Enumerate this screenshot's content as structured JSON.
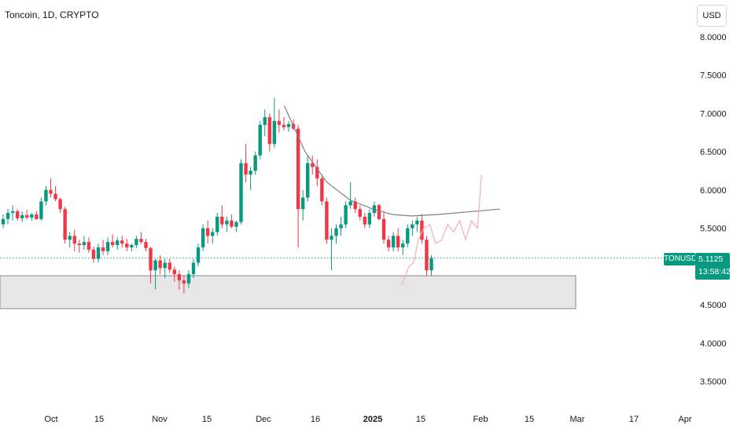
{
  "header": {
    "title": "Toncoin, 1D, CRYPTO",
    "currency": "USD"
  },
  "price": {
    "symbol": "TONUSD",
    "last": "5.1125",
    "countdown": "13:58:42"
  },
  "colors": {
    "up": "#089981",
    "down": "#f23645",
    "grid": "#ffffff",
    "text": "#131722",
    "zone": "#e6e6e6",
    "zone_border": "#8a8a8a",
    "curve": "#808080",
    "projection": "#f4b4bb",
    "price_line": "#089981"
  },
  "chart_data": {
    "type": "candlestick",
    "x_ticks": [
      "Oct",
      "15",
      "Nov",
      "15",
      "Dec",
      "16",
      "2025",
      "15",
      "Feb",
      "15",
      "Mar",
      "17",
      "Apr"
    ],
    "y_ticks": [
      "8.0000",
      "7.5000",
      "7.0000",
      "6.5000",
      "6.0000",
      "5.5000",
      "4.5000",
      "4.0000",
      "3.5000"
    ],
    "ylim": [
      3.25,
      8.1
    ],
    "candles_ohlc": [
      [
        5.55,
        5.68,
        5.5,
        5.62
      ],
      [
        5.62,
        5.75,
        5.55,
        5.7
      ],
      [
        5.7,
        5.8,
        5.6,
        5.72
      ],
      [
        5.72,
        5.75,
        5.6,
        5.63
      ],
      [
        5.63,
        5.72,
        5.58,
        5.67
      ],
      [
        5.67,
        5.74,
        5.62,
        5.64
      ],
      [
        5.64,
        5.7,
        5.6,
        5.68
      ],
      [
        5.68,
        5.72,
        5.61,
        5.62
      ],
      [
        5.62,
        5.9,
        5.6,
        5.85
      ],
      [
        5.85,
        6.05,
        5.8,
        6.0
      ],
      [
        6.0,
        6.15,
        5.9,
        5.95
      ],
      [
        5.95,
        6.05,
        5.85,
        5.88
      ],
      [
        5.88,
        5.9,
        5.7,
        5.75
      ],
      [
        5.75,
        5.78,
        5.3,
        5.35
      ],
      [
        5.35,
        5.45,
        5.25,
        5.4
      ],
      [
        5.4,
        5.48,
        5.2,
        5.3
      ],
      [
        5.3,
        5.35,
        5.18,
        5.28
      ],
      [
        5.28,
        5.4,
        5.22,
        5.32
      ],
      [
        5.32,
        5.38,
        5.18,
        5.22
      ],
      [
        5.22,
        5.26,
        5.05,
        5.1
      ],
      [
        5.1,
        5.3,
        5.05,
        5.25
      ],
      [
        5.25,
        5.35,
        5.15,
        5.2
      ],
      [
        5.2,
        5.38,
        5.15,
        5.32
      ],
      [
        5.32,
        5.42,
        5.25,
        5.28
      ],
      [
        5.28,
        5.38,
        5.22,
        5.34
      ],
      [
        5.34,
        5.4,
        5.25,
        5.3
      ],
      [
        5.3,
        5.36,
        5.2,
        5.25
      ],
      [
        5.25,
        5.3,
        5.2,
        5.28
      ],
      [
        5.28,
        5.4,
        5.24,
        5.36
      ],
      [
        5.36,
        5.45,
        5.3,
        5.32
      ],
      [
        5.32,
        5.36,
        5.2,
        5.24
      ],
      [
        5.24,
        5.26,
        4.78,
        4.95
      ],
      [
        4.95,
        5.1,
        4.7,
        5.08
      ],
      [
        5.08,
        5.15,
        4.9,
        4.98
      ],
      [
        4.98,
        5.1,
        4.85,
        5.05
      ],
      [
        5.05,
        5.1,
        4.92,
        4.96
      ],
      [
        4.96,
        5.0,
        4.8,
        4.9
      ],
      [
        4.9,
        4.95,
        4.7,
        4.82
      ],
      [
        4.82,
        4.88,
        4.65,
        4.78
      ],
      [
        4.78,
        4.95,
        4.72,
        4.9
      ],
      [
        4.9,
        5.1,
        4.85,
        5.05
      ],
      [
        5.05,
        5.3,
        5.0,
        5.25
      ],
      [
        5.25,
        5.55,
        5.2,
        5.5
      ],
      [
        5.5,
        5.6,
        5.3,
        5.4
      ],
      [
        5.4,
        5.5,
        5.3,
        5.45
      ],
      [
        5.45,
        5.7,
        5.4,
        5.65
      ],
      [
        5.65,
        5.8,
        5.5,
        5.55
      ],
      [
        5.55,
        5.65,
        5.45,
        5.6
      ],
      [
        5.6,
        5.68,
        5.5,
        5.52
      ],
      [
        5.52,
        5.6,
        5.45,
        5.58
      ],
      [
        5.58,
        6.4,
        5.55,
        6.35
      ],
      [
        6.35,
        6.6,
        6.1,
        6.2
      ],
      [
        6.2,
        6.3,
        6.0,
        6.25
      ],
      [
        6.25,
        6.5,
        6.2,
        6.45
      ],
      [
        6.45,
        6.9,
        6.4,
        6.85
      ],
      [
        6.85,
        7.05,
        6.7,
        6.95
      ],
      [
        6.95,
        7.0,
        6.5,
        6.6
      ],
      [
        6.6,
        7.2,
        6.55,
        6.9
      ],
      [
        6.9,
        7.05,
        6.75,
        6.85
      ],
      [
        6.85,
        6.95,
        6.78,
        6.82
      ],
      [
        6.82,
        6.9,
        6.76,
        6.86
      ],
      [
        6.86,
        6.92,
        6.78,
        6.8
      ],
      [
        6.8,
        6.85,
        5.25,
        5.75
      ],
      [
        5.75,
        6.0,
        5.6,
        5.9
      ],
      [
        5.9,
        6.45,
        5.85,
        6.35
      ],
      [
        6.35,
        6.45,
        6.2,
        6.3
      ],
      [
        6.3,
        6.4,
        6.05,
        6.15
      ],
      [
        6.15,
        6.2,
        5.8,
        5.85
      ],
      [
        5.85,
        5.9,
        5.3,
        5.35
      ],
      [
        5.35,
        5.5,
        4.95,
        5.4
      ],
      [
        5.4,
        5.55,
        5.3,
        5.5
      ],
      [
        5.5,
        5.65,
        5.4,
        5.55
      ],
      [
        5.55,
        5.85,
        5.5,
        5.8
      ],
      [
        5.8,
        6.1,
        5.75,
        5.85
      ],
      [
        5.85,
        5.9,
        5.7,
        5.75
      ],
      [
        5.75,
        5.8,
        5.6,
        5.65
      ],
      [
        5.65,
        5.7,
        5.5,
        5.55
      ],
      [
        5.55,
        5.75,
        5.5,
        5.7
      ],
      [
        5.7,
        5.85,
        5.65,
        5.8
      ],
      [
        5.8,
        5.82,
        5.6,
        5.62
      ],
      [
        5.62,
        5.7,
        5.3,
        5.35
      ],
      [
        5.35,
        5.4,
        5.2,
        5.25
      ],
      [
        5.25,
        5.45,
        5.2,
        5.4
      ],
      [
        5.4,
        5.5,
        5.2,
        5.25
      ],
      [
        5.25,
        5.35,
        5.15,
        5.3
      ],
      [
        5.3,
        5.55,
        5.25,
        5.5
      ],
      [
        5.5,
        5.6,
        5.4,
        5.55
      ],
      [
        5.55,
        5.65,
        5.45,
        5.6
      ],
      [
        5.6,
        5.68,
        5.3,
        5.35
      ],
      [
        5.35,
        5.4,
        4.88,
        4.95
      ],
      [
        4.95,
        5.15,
        4.88,
        5.11
      ]
    ],
    "support_zone": {
      "low": 4.45,
      "high": 4.88
    },
    "resistance_curve": [
      [
        7.4,
        7.1
      ],
      [
        7.8,
        6.5
      ],
      [
        8.2,
        6.1
      ],
      [
        8.6,
        5.87
      ],
      [
        9.0,
        5.75
      ],
      [
        9.4,
        5.68
      ],
      [
        9.8,
        5.66
      ],
      [
        10.3,
        5.68
      ],
      [
        11.4,
        5.75
      ]
    ],
    "projection_path": [
      [
        9.6,
        4.75
      ],
      [
        9.75,
        5.0
      ],
      [
        9.85,
        5.05
      ],
      [
        9.95,
        5.35
      ],
      [
        10.05,
        5.5
      ],
      [
        10.15,
        5.55
      ],
      [
        10.25,
        5.3
      ],
      [
        10.35,
        5.35
      ],
      [
        10.45,
        5.55
      ],
      [
        10.55,
        5.45
      ],
      [
        10.65,
        5.6
      ],
      [
        10.75,
        5.35
      ],
      [
        10.85,
        5.6
      ],
      [
        10.95,
        5.5
      ],
      [
        11.02,
        6.2
      ]
    ],
    "last_price": 5.1125
  }
}
